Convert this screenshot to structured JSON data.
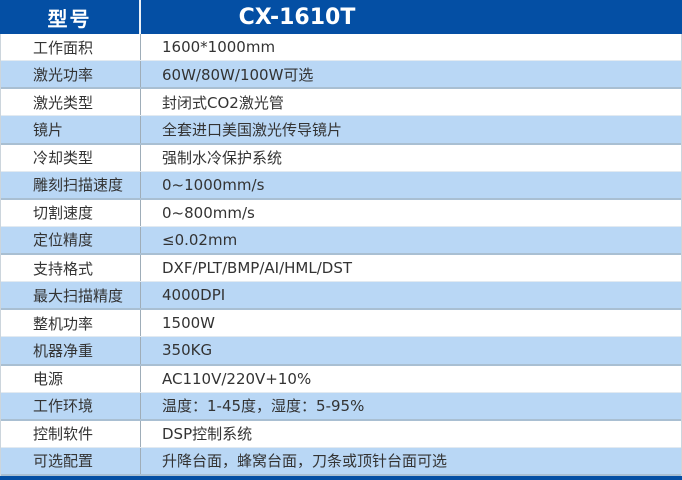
{
  "header": {
    "label": "型号",
    "model": "CX-1610T"
  },
  "rows": [
    {
      "label": "工作面积",
      "value": "1600*1000mm"
    },
    {
      "label": "激光功率",
      "value": "60W/80W/100W可选"
    },
    {
      "label": "激光类型",
      "value": "封闭式CO2激光管"
    },
    {
      "label": "镜片",
      "value": "全套进口美国激光传导镜片"
    },
    {
      "label": "冷却类型",
      "value": "强制水冷保护系统"
    },
    {
      "label": "雕刻扫描速度",
      "value": "0~1000mm/s"
    },
    {
      "label": "切割速度",
      "value": "0~800mm/s"
    },
    {
      "label": "定位精度",
      "value": "≤0.02mm"
    },
    {
      "label": "支持格式",
      "value": "DXF/PLT/BMP/AI/HML/DST"
    },
    {
      "label": "最大扫描精度",
      "value": "4000DPI"
    },
    {
      "label": "整机功率",
      "value": "1500W"
    },
    {
      "label": "机器净重",
      "value": "350KG"
    },
    {
      "label": "电源",
      "value": "AC110V/220V+10%"
    },
    {
      "label": "工作环境",
      "value": "温度：1-45度，湿度：5-95%"
    },
    {
      "label": "控制软件",
      "value": "DSP控制系统"
    },
    {
      "label": "可选配置",
      "value": "升降台面，蜂窝台面，刀条或顶针台面可选"
    }
  ],
  "colors": {
    "header_bg": "#044fa4",
    "row_alt_bg": "#b9d7f5",
    "bottom_bar": "#044fa4",
    "text": "#333333"
  }
}
